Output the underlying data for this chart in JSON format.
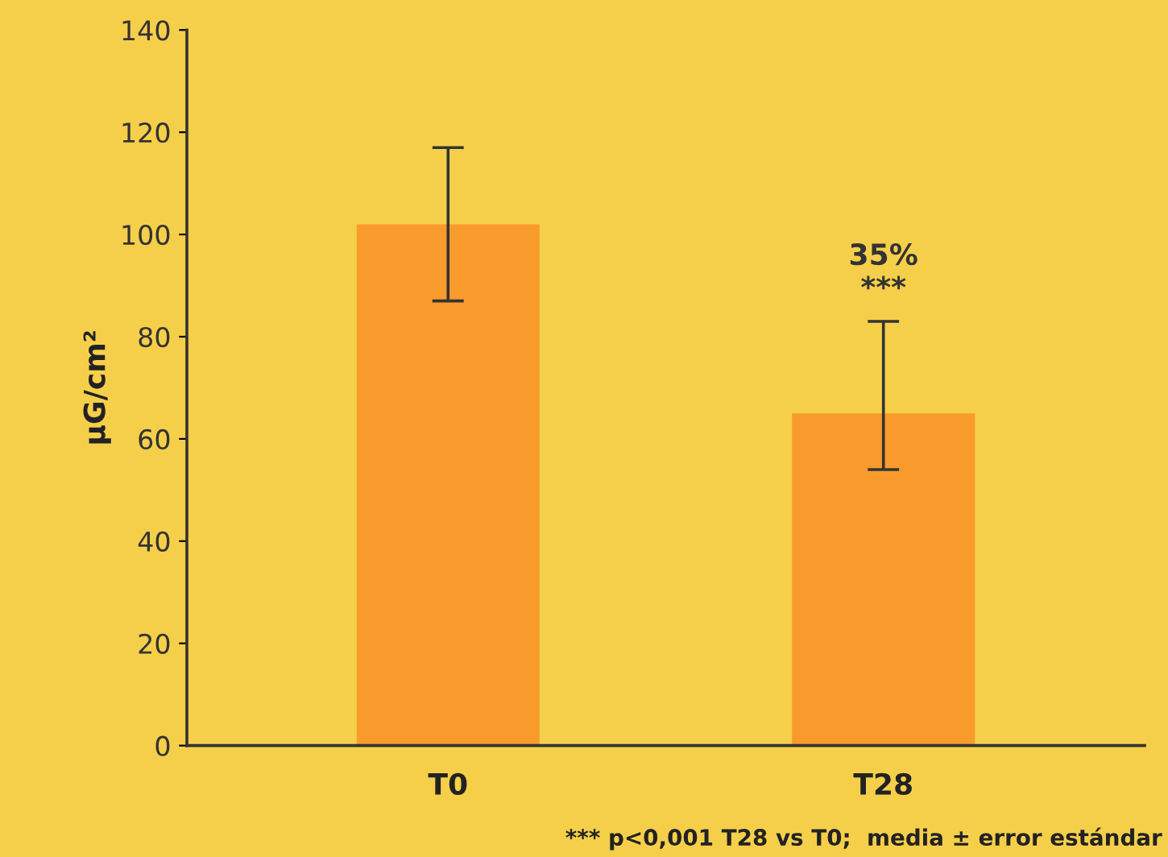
{
  "chart_data": {
    "type": "bar",
    "ylabel": "µG/cm²",
    "categories": [
      "T0",
      "T28"
    ],
    "values": [
      102,
      65
    ],
    "errors": [
      [
        87,
        117
      ],
      [
        54,
        83
      ]
    ],
    "color": "#f89a2c",
    "ylim": [
      0,
      140
    ],
    "yticks": [
      0,
      20,
      40,
      60,
      80,
      100,
      120,
      140
    ],
    "annotations": [
      {
        "text": "35%\n***",
        "x": "T28",
        "y": 83
      },
      "*** p<0,001 T28 vs T0;  media ± error estándar"
    ]
  }
}
